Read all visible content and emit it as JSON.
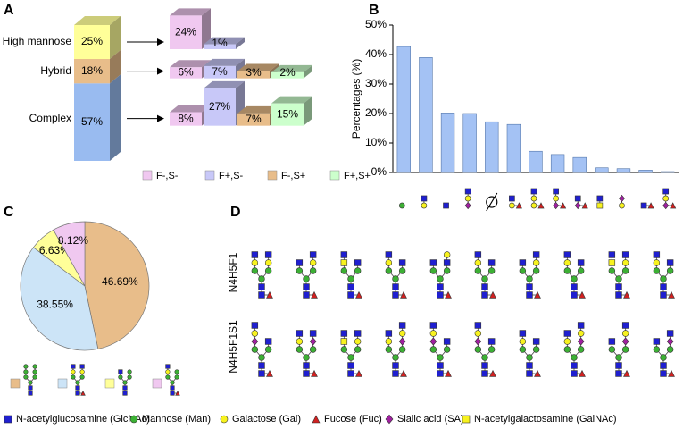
{
  "panel_labels": [
    "A",
    "B",
    "C",
    "D"
  ],
  "chart_data": [
    {
      "type": "stacked3d",
      "categories": [
        "High mannose",
        "Hybrid",
        "Complex"
      ],
      "values": [
        25,
        18,
        57
      ],
      "value_labels": [
        "25%",
        "18%",
        "57%"
      ],
      "colors": [
        "#ffff99",
        "#e8bd8a",
        "#99bbf0"
      ],
      "subtypes": {
        "names": [
          "F-,S-",
          "F+,S-",
          "F-,S+",
          "F+,S+"
        ],
        "colors": [
          "#f0c8f0",
          "#c8c8f8",
          "#e8bd8a",
          "#ccffcc"
        ]
      },
      "breakdown": [
        {
          "values": [
            24,
            1
          ],
          "value_labels": [
            "24%",
            "1%"
          ]
        },
        {
          "values": [
            6,
            7,
            3,
            2
          ],
          "value_labels": [
            "6%",
            "7%",
            "3%",
            "2%"
          ]
        },
        {
          "values": [
            8,
            27,
            7,
            15
          ],
          "value_labels": [
            "8%",
            "27%",
            "7%",
            "15%"
          ]
        }
      ]
    },
    {
      "type": "bar",
      "ylabel": "Percentages (%)",
      "categories": [
        null,
        null,
        null,
        null,
        null,
        null,
        null,
        null,
        null,
        null,
        null,
        null,
        null
      ],
      "values": [
        42.7,
        39,
        20.2,
        20,
        17.2,
        16.3,
        7.2,
        6.1,
        5.1,
        1.6,
        1.3,
        0.8,
        0.3
      ],
      "color": "#a4c2f4",
      "ylim": [
        0,
        50
      ],
      "yticks": [
        {
          "value": 0,
          "label": "0%"
        },
        {
          "value": 10,
          "label": "10%"
        },
        {
          "value": 20,
          "label": "20%"
        },
        {
          "value": 30,
          "label": "30%"
        },
        {
          "value": 40,
          "label": "40%"
        },
        {
          "value": 50,
          "label": "50%"
        }
      ]
    },
    {
      "type": "pie",
      "categories": [
        null,
        null,
        null,
        null
      ],
      "values": [
        46.69,
        38.55,
        6.63,
        8.12
      ],
      "value_labels": [
        "46.69%",
        "38.55%",
        "6.63%",
        "8.12%"
      ],
      "colors": [
        "#e8bd8a",
        "#cce4f7",
        "#ffff99",
        "#f0c8f0"
      ]
    }
  ],
  "glycan_panel": {
    "row_labels": [
      "N4H5F1",
      "N4H5F1S1"
    ]
  },
  "legend": [
    "N-acetylglucosamine (GlcNAc)",
    "Mannose (Man)",
    "Galactose (Gal)",
    "Fucose (Fuc)",
    "Sialic acid (SA)",
    "N-acetylgalactosamine (GalNAc)"
  ]
}
